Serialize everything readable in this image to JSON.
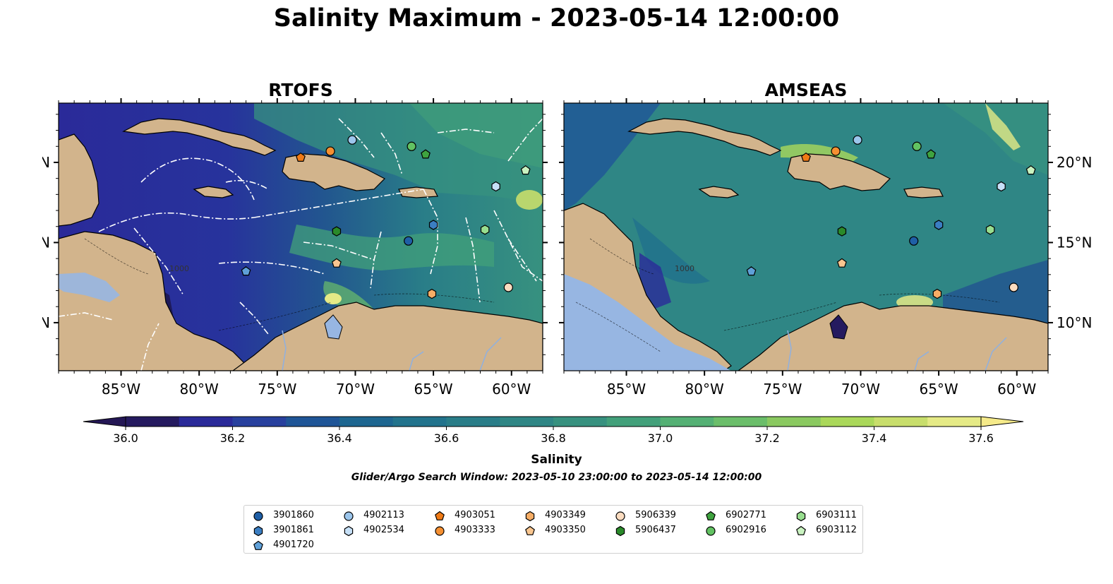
{
  "figure": {
    "title": "Salinity Maximum - 2023-05-14 12:00:00"
  },
  "panels": [
    {
      "title": "RTOFS"
    },
    {
      "title": "AMSEAS"
    }
  ],
  "map": {
    "lon_ticks": [
      "85°W",
      "80°W",
      "75°W",
      "70°W",
      "65°W",
      "60°W"
    ],
    "lat_ticks": [
      "20°N",
      "15°N",
      "10°N"
    ],
    "depth_contour_label": "1000"
  },
  "colorbar": {
    "label": "Salinity",
    "min": 36.0,
    "max": 37.6,
    "tick_values": [
      36.0,
      36.2,
      36.4,
      36.6,
      36.8,
      37.0,
      37.2,
      37.4,
      37.6
    ],
    "tick_labels": [
      "36.0",
      "36.2",
      "36.4",
      "36.6",
      "36.8",
      "37.0",
      "37.2",
      "37.4",
      "37.6"
    ],
    "colors": [
      "#251a5f",
      "#2a2a99",
      "#28409e",
      "#1f5597",
      "#1d6690",
      "#22738c",
      "#297d88",
      "#2f8685",
      "#37917f",
      "#42a07a",
      "#54b074",
      "#6bbe6a",
      "#8ac960",
      "#aad85a",
      "#c8de6c",
      "#e5ea86"
    ],
    "extend_low_color": "#241755",
    "extend_high_color": "#f5ea8a"
  },
  "subtitle": "Glider/Argo Search Window: 2023-05-10 23:00:00 to 2023-05-14 12:00:00",
  "legend": {
    "items": [
      {
        "label": "3901860",
        "marker": "circle",
        "color": "#1f5fa6"
      },
      {
        "label": "3901861",
        "marker": "hexagon",
        "color": "#3b7ec2"
      },
      {
        "label": "4901720",
        "marker": "pentagon",
        "color": "#5fa0d8"
      },
      {
        "label": "4902113",
        "marker": "circle",
        "color": "#9cc6ec"
      },
      {
        "label": "4902534",
        "marker": "hexagon",
        "color": "#c6e0f7"
      },
      {
        "label": "4903051",
        "marker": "pentagon",
        "color": "#ef7a16"
      },
      {
        "label": "4903333",
        "marker": "circle",
        "color": "#f59032"
      },
      {
        "label": "4903349",
        "marker": "hexagon",
        "color": "#f6ad66"
      },
      {
        "label": "4903350",
        "marker": "pentagon",
        "color": "#f9c690"
      },
      {
        "label": "5906339",
        "marker": "circle",
        "color": "#fbdcc0"
      },
      {
        "label": "5906437",
        "marker": "hexagon",
        "color": "#2a8a2a"
      },
      {
        "label": "6902771",
        "marker": "pentagon",
        "color": "#3fa33f"
      },
      {
        "label": "6902916",
        "marker": "circle",
        "color": "#62c262"
      },
      {
        "label": "6903111",
        "marker": "hexagon",
        "color": "#98de8f"
      },
      {
        "label": "6903112",
        "marker": "pentagon",
        "color": "#c9f2c0"
      }
    ]
  },
  "observations": [
    {
      "id": "3901860",
      "lon": -66.6,
      "lat": 15.1
    },
    {
      "id": "3901861",
      "lon": -65.0,
      "lat": 16.1
    },
    {
      "id": "4901720",
      "lon": -77.0,
      "lat": 13.2
    },
    {
      "id": "4902113",
      "lon": -70.2,
      "lat": 21.4
    },
    {
      "id": "4902534",
      "lon": -61.0,
      "lat": 18.5
    },
    {
      "id": "4903051",
      "lon": -73.5,
      "lat": 20.3
    },
    {
      "id": "4903333",
      "lon": -71.6,
      "lat": 20.7
    },
    {
      "id": "4903349",
      "lon": -65.1,
      "lat": 11.8
    },
    {
      "id": "4903350",
      "lon": -71.2,
      "lat": 13.7
    },
    {
      "id": "5906339",
      "lon": -60.2,
      "lat": 12.2
    },
    {
      "id": "5906437",
      "lon": -71.2,
      "lat": 15.7
    },
    {
      "id": "6902771",
      "lon": -65.5,
      "lat": 20.5
    },
    {
      "id": "6902916",
      "lon": -66.4,
      "lat": 21.0
    },
    {
      "id": "6903111",
      "lon": -61.7,
      "lat": 15.8
    },
    {
      "id": "6903112",
      "lon": -59.1,
      "lat": 19.5
    }
  ]
}
